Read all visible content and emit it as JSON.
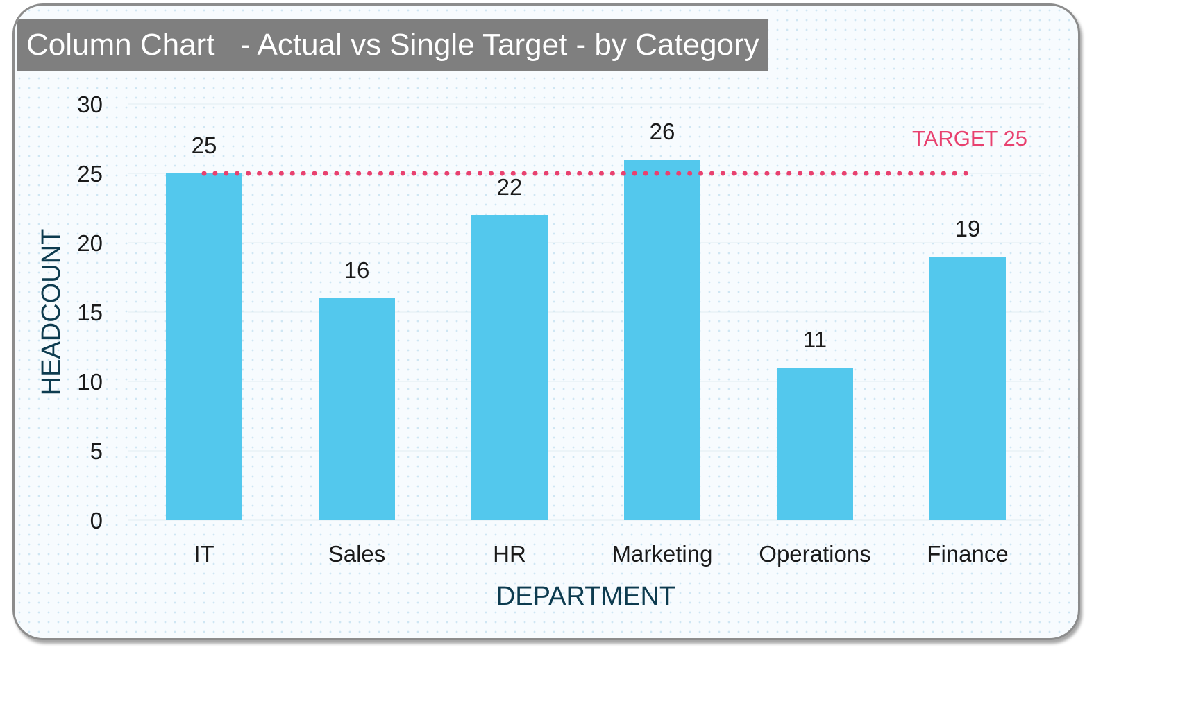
{
  "title": "Column Chart   - Actual vs Single Target - by Category",
  "colors": {
    "bar": "#53c8ed",
    "target": "#e8416f",
    "axis_title": "#0d3b4f",
    "title_bg": "#7f7f7f"
  },
  "chart_data": {
    "type": "bar",
    "title": "Column Chart   - Actual vs Single Target - by Category",
    "xlabel": "DEPARTMENT",
    "ylabel": "HEADCOUNT",
    "categories": [
      "IT",
      "Sales",
      "HR",
      "Marketing",
      "Operations",
      "Finance"
    ],
    "values": [
      25,
      16,
      22,
      26,
      11,
      19
    ],
    "ylim": [
      0,
      30
    ],
    "yticks": [
      "0",
      "5",
      "10",
      "15",
      "20",
      "25",
      "30"
    ],
    "target": {
      "value": 25,
      "label": "TARGET 25"
    },
    "grid": true,
    "legend": "none"
  }
}
